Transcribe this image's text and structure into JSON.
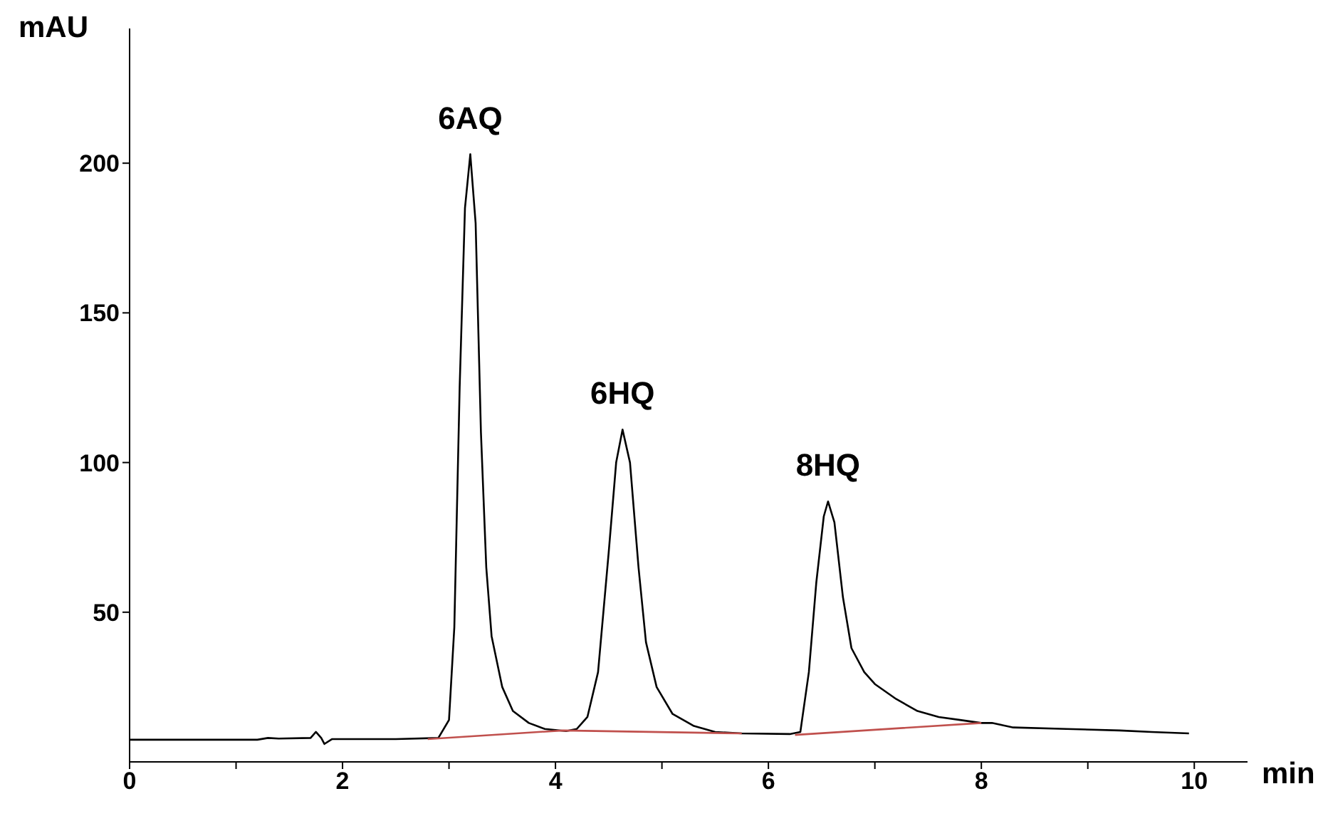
{
  "chart_data": {
    "type": "line",
    "xlabel": "min",
    "ylabel": "mAU",
    "xlim": [
      0,
      10.5
    ],
    "xticks": [
      0,
      {
        "value": 1,
        "label": null
      },
      2,
      {
        "value": 3,
        "label": null
      },
      4,
      {
        "value": 5,
        "label": null
      },
      6,
      {
        "value": 7,
        "label": null
      },
      8,
      {
        "value": 9,
        "label": null
      },
      10
    ],
    "ylim": [
      0,
      245
    ],
    "yticks": [
      50,
      100,
      150,
      200
    ],
    "marker": "none",
    "series": [
      {
        "color": "#000000",
        "x": [
          0,
          1.2,
          1.3,
          1.4,
          1.7,
          1.75,
          1.8,
          1.83,
          1.9,
          2.5,
          2.9,
          3.0,
          3.05,
          3.1,
          3.15,
          3.2,
          3.25,
          3.3,
          3.35,
          3.4,
          3.5,
          3.6,
          3.75,
          3.9,
          4.1,
          4.2,
          4.3,
          4.4,
          4.5,
          4.57,
          4.63,
          4.7,
          4.78,
          4.85,
          4.95,
          5.1,
          5.3,
          5.5,
          5.75,
          6.2,
          6.3,
          6.38,
          6.45,
          6.52,
          6.56,
          6.62,
          6.7,
          6.78,
          6.9,
          7.0,
          7.2,
          7.4,
          7.6,
          7.8,
          8.0,
          8.1,
          8.3,
          8.8,
          9.3,
          9.6,
          9.95
        ],
        "values": [
          7.4,
          7.4,
          8,
          7.8,
          8,
          10,
          8,
          6,
          7.6,
          7.6,
          8,
          14,
          45,
          125,
          185,
          203,
          180,
          110,
          65,
          42,
          25,
          17,
          13,
          11,
          10.3,
          11,
          15,
          30,
          70,
          100,
          111,
          100,
          65,
          40,
          25,
          16,
          12,
          10,
          9.5,
          9.3,
          10,
          30,
          60,
          82,
          87,
          80,
          55,
          38,
          30,
          26,
          21,
          17,
          15,
          14,
          13,
          13,
          11.5,
          11,
          10.5,
          10,
          9.5
        ]
      },
      {
        "color": "#c0504d",
        "x": [
          2.8,
          4.07,
          4.07,
          5.75,
          5.9,
          6.25,
          8.0
        ],
        "values": [
          7.6,
          10.5,
          10.5,
          9.5,
          null,
          9,
          13
        ]
      }
    ],
    "annotations": [
      {
        "text": "6AQ",
        "x": 3.2,
        "y": 203
      },
      {
        "text": "6HQ",
        "x": 4.63,
        "y": 111
      },
      {
        "text": "8HQ",
        "x": 6.56,
        "y": 87
      }
    ]
  }
}
